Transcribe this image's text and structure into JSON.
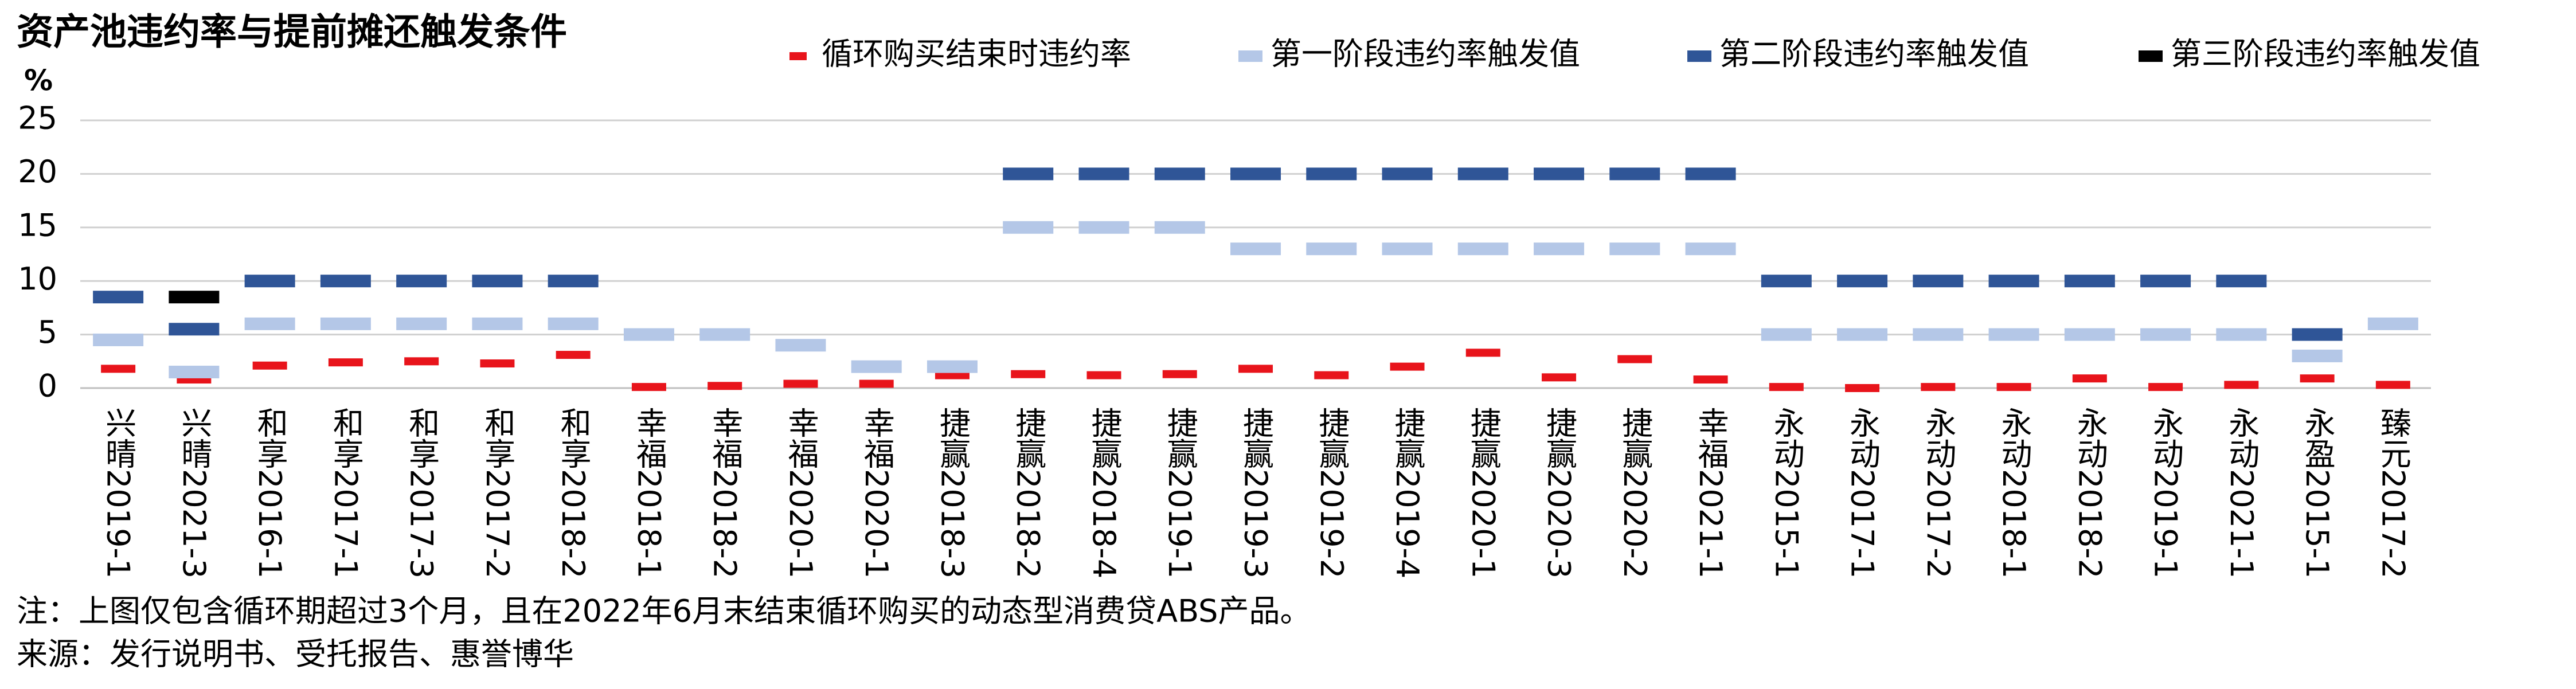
{
  "chart_data": {
    "type": "marker",
    "title": "资产池违约率与提前摊还触发条件",
    "y_unit": "%",
    "categories": [
      "兴晴2019-1",
      "兴晴2021-3",
      "和享2016-1",
      "和享2017-1",
      "和享2017-3",
      "和享2017-2",
      "和享2018-2",
      "幸福2018-1",
      "幸福2018-2",
      "幸福2020-1",
      "幸福2020-1",
      "捷赢2018-3",
      "捷赢2018-2",
      "捷赢2018-4",
      "捷赢2019-1",
      "捷赢2019-3",
      "捷赢2019-2",
      "捷赢2019-4",
      "捷赢2020-1",
      "捷赢2020-3",
      "捷赢2020-2",
      "幸福2021-1",
      "永动2015-1",
      "永动2017-1",
      "永动2017-2",
      "永动2018-1",
      "永动2018-2",
      "永动2019-1",
      "永动2021-1",
      "永盈2015-1",
      "臻元2017-2"
    ],
    "series": [
      {
        "name": "循环购买结束时违约率",
        "color": "#e8141b",
        "values": [
          1.8,
          0.8,
          2.1,
          2.4,
          2.5,
          2.3,
          3.1,
          0.1,
          0.2,
          0.4,
          0.4,
          1.2,
          1.3,
          1.2,
          1.3,
          1.8,
          1.2,
          2.0,
          3.3,
          1.0,
          2.7,
          0.8,
          0.1,
          0.0,
          0.1,
          0.1,
          0.9,
          0.1,
          0.3,
          0.9,
          0.3
        ]
      },
      {
        "name": "第一阶段违约率触发值",
        "color": "#b4c7e7",
        "values": [
          4.5,
          1.5,
          6,
          6,
          6,
          6,
          6,
          5,
          5,
          4,
          2,
          2,
          15,
          15,
          15,
          13,
          13,
          13,
          13,
          13,
          13,
          13,
          5,
          5,
          5,
          5,
          5,
          5,
          5,
          3,
          6
        ]
      },
      {
        "name": "第二阶段违约率触发值",
        "color": "#2f5597",
        "values": [
          8.5,
          5.5,
          10,
          10,
          10,
          10,
          10,
          null,
          null,
          null,
          null,
          null,
          20,
          20,
          20,
          20,
          20,
          20,
          20,
          20,
          20,
          20,
          10,
          10,
          10,
          10,
          10,
          10,
          10,
          5,
          null
        ]
      },
      {
        "name": "第三阶段违约率触发值",
        "color": "#000000",
        "values": [
          null,
          8.5,
          null,
          null,
          null,
          null,
          null,
          null,
          null,
          null,
          null,
          null,
          null,
          null,
          null,
          null,
          null,
          null,
          null,
          null,
          null,
          null,
          null,
          null,
          null,
          null,
          null,
          null,
          null,
          null,
          null
        ]
      }
    ],
    "ylim": [
      0,
      25
    ],
    "yticks": [
      0,
      5,
      10,
      15,
      20,
      25
    ],
    "grid": true,
    "note": "注：上图仅包含循环期超过3个月，且在2022年6月末结束循环购买的动态型消费贷ABS产品。",
    "source": "来源：发行说明书、受托报告、惠誉博华"
  }
}
